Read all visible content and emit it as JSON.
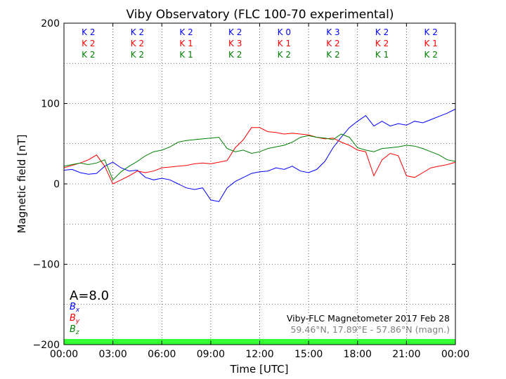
{
  "chart_data": {
    "type": "line",
    "title": "Viby Observatory (FLC 100-70 experimental)",
    "xlabel": "Time [UTC]",
    "ylabel": "Magnetic field [nT]",
    "xlim": [
      0,
      24
    ],
    "ylim": [
      -200,
      200
    ],
    "x_ticks": [
      {
        "value": 0,
        "label": "00:00"
      },
      {
        "value": 3,
        "label": "03:00"
      },
      {
        "value": 6,
        "label": "06:00"
      },
      {
        "value": 9,
        "label": "09:00"
      },
      {
        "value": 12,
        "label": "12:00"
      },
      {
        "value": 15,
        "label": "15:00"
      },
      {
        "value": 18,
        "label": "18:00"
      },
      {
        "value": 21,
        "label": "21:00"
      },
      {
        "value": 24,
        "label": "00:00"
      }
    ],
    "y_ticks": [
      {
        "value": 200,
        "label": "200"
      },
      {
        "value": 100,
        "label": "100"
      },
      {
        "value": 0,
        "label": "0"
      },
      {
        "value": -100,
        "label": "−100"
      },
      {
        "value": -200,
        "label": "−200"
      }
    ],
    "grid": true,
    "series": [
      {
        "name": "Bx",
        "label_main": "B",
        "label_sub": "x",
        "color": "#0000ff",
        "x": [
          0,
          0.5,
          1,
          1.5,
          2,
          2.5,
          3,
          3.5,
          4,
          4.5,
          5,
          5.5,
          6,
          6.5,
          7,
          7.5,
          8,
          8.5,
          9,
          9.5,
          10,
          10.5,
          11,
          11.5,
          12,
          12.5,
          13,
          13.5,
          14,
          14.5,
          15,
          15.5,
          16,
          16.5,
          17,
          17.5,
          18,
          18.5,
          19,
          19.5,
          20,
          20.5,
          21,
          21.5,
          22,
          22.5,
          23,
          23.5,
          24
        ],
        "y": [
          17,
          18,
          14,
          12,
          13,
          22,
          27,
          20,
          16,
          17,
          8,
          5,
          7,
          5,
          0,
          -5,
          -7,
          -5,
          -20,
          -22,
          -5,
          3,
          8,
          13,
          15,
          16,
          20,
          18,
          22,
          16,
          14,
          18,
          28,
          45,
          58,
          70,
          78,
          85,
          72,
          78,
          72,
          75,
          73,
          78,
          76,
          80,
          84,
          88,
          93
        ]
      },
      {
        "name": "By",
        "label_main": "B",
        "label_sub": "y",
        "color": "#ff0000",
        "x": [
          0,
          0.5,
          1,
          1.5,
          2,
          2.5,
          3,
          3.5,
          4,
          4.5,
          5,
          5.5,
          6,
          6.5,
          7,
          7.5,
          8,
          8.5,
          9,
          9.5,
          10,
          10.5,
          11,
          11.5,
          12,
          12.5,
          13,
          13.5,
          14,
          14.5,
          15,
          15.5,
          16,
          16.5,
          17,
          17.5,
          18,
          18.5,
          19,
          19.5,
          20,
          20.5,
          21,
          21.5,
          22,
          22.5,
          23,
          23.5,
          24
        ],
        "y": [
          20,
          23,
          26,
          30,
          36,
          22,
          0,
          5,
          10,
          16,
          14,
          16,
          20,
          21,
          22,
          23,
          25,
          26,
          25,
          27,
          29,
          45,
          55,
          70,
          70,
          65,
          64,
          62,
          63,
          62,
          61,
          58,
          56,
          57,
          52,
          48,
          42,
          40,
          10,
          30,
          38,
          35,
          10,
          8,
          14,
          20,
          22,
          24,
          27
        ]
      },
      {
        "name": "Bz",
        "label_main": "B",
        "label_sub": "z",
        "color": "#008000",
        "x": [
          0,
          0.5,
          1,
          1.5,
          2,
          2.5,
          3,
          3.5,
          4,
          4.5,
          5,
          5.5,
          6,
          6.5,
          7,
          7.5,
          8,
          8.5,
          9,
          9.5,
          10,
          10.5,
          11,
          11.5,
          12,
          12.5,
          13,
          13.5,
          14,
          14.5,
          15,
          15.5,
          16,
          16.5,
          17,
          17.5,
          18,
          18.5,
          19,
          19.5,
          20,
          20.5,
          21,
          21.5,
          22,
          22.5,
          23,
          23.5,
          24
        ],
        "y": [
          22,
          24,
          26,
          24,
          26,
          30,
          5,
          15,
          22,
          28,
          35,
          40,
          42,
          46,
          52,
          54,
          55,
          56,
          57,
          58,
          44,
          40,
          42,
          38,
          40,
          44,
          46,
          48,
          52,
          58,
          60,
          58,
          57,
          55,
          62,
          58,
          45,
          42,
          40,
          44,
          45,
          46,
          48,
          47,
          44,
          40,
          36,
          30,
          28
        ]
      }
    ],
    "k_indices": {
      "rows": [
        "Bx",
        "By",
        "Bz"
      ],
      "values": [
        [
          "K 2",
          "K 2",
          "K 2",
          "K 2",
          "K 0",
          "K 3",
          "K 2",
          "K 2"
        ],
        [
          "K 2",
          "K 2",
          "K 1",
          "K 3",
          "K 1",
          "K 2",
          "K 2",
          "K 1"
        ],
        [
          "K 2",
          "K 2",
          "K 1",
          "K 2",
          "K 2",
          "K 2",
          "K 1",
          "K 2"
        ]
      ]
    },
    "a_index": "A=8.0",
    "info_line1": "Viby-FLC Magnetometer 2017 Feb 28",
    "info_line2": "59.46°N, 17.89°E - 57.86°N (magn.)",
    "status_bar_color": "#33ff33",
    "info_line2_color": "#808080"
  }
}
